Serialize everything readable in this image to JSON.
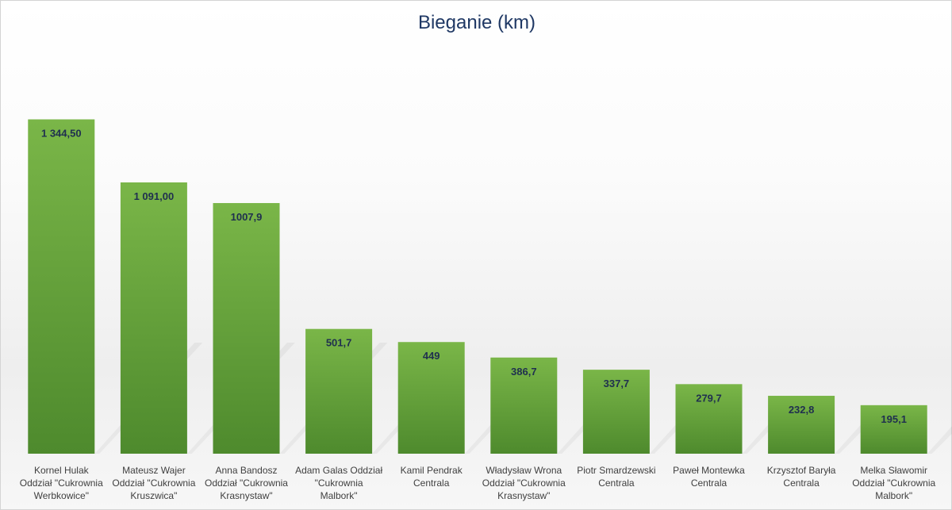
{
  "chart_data": {
    "type": "bar",
    "title": "Bieganie (km)",
    "categories": [
      [
        "Kornel Hulak",
        "Oddział \"Cukrownia",
        "Werbkowice\""
      ],
      [
        "Mateusz Wajer",
        "Oddział \"Cukrownia",
        "Kruszwica\""
      ],
      [
        "Anna Bandosz",
        "Oddział \"Cukrownia",
        "Krasnystaw\""
      ],
      [
        "Adam Galas Oddział",
        "\"Cukrownia",
        "Malbork\""
      ],
      [
        "Kamil Pendrak",
        "Centrala"
      ],
      [
        "Władysław Wrona",
        "Oddział \"Cukrownia",
        "Krasnystaw\""
      ],
      [
        "Piotr Smardzewski",
        "Centrala"
      ],
      [
        "Paweł Montewka",
        "Centrala"
      ],
      [
        "Krzysztof Baryła",
        "Centrala"
      ],
      [
        "Melka Sławomir",
        "Oddział \"Cukrownia",
        "Malbork\""
      ]
    ],
    "values": [
      1344.5,
      1091.0,
      1007.9,
      501.7,
      449,
      386.7,
      337.7,
      279.7,
      232.8,
      195.1
    ],
    "data_labels": [
      "1 344,50",
      "1 091,00",
      "1007,9",
      "501,7",
      "449",
      "386,7",
      "337,7",
      "279,7",
      "232,8",
      "195,1"
    ],
    "xlabel": "",
    "ylabel": "",
    "ylim": [
      0,
      1600
    ],
    "grid": false,
    "legend": "none",
    "colors": {
      "bar_top": "#7ab648",
      "bar_bottom": "#4e8a2d",
      "title": "#1f3864",
      "data_label": "#1f2f4f",
      "category_label": "#404040"
    }
  }
}
